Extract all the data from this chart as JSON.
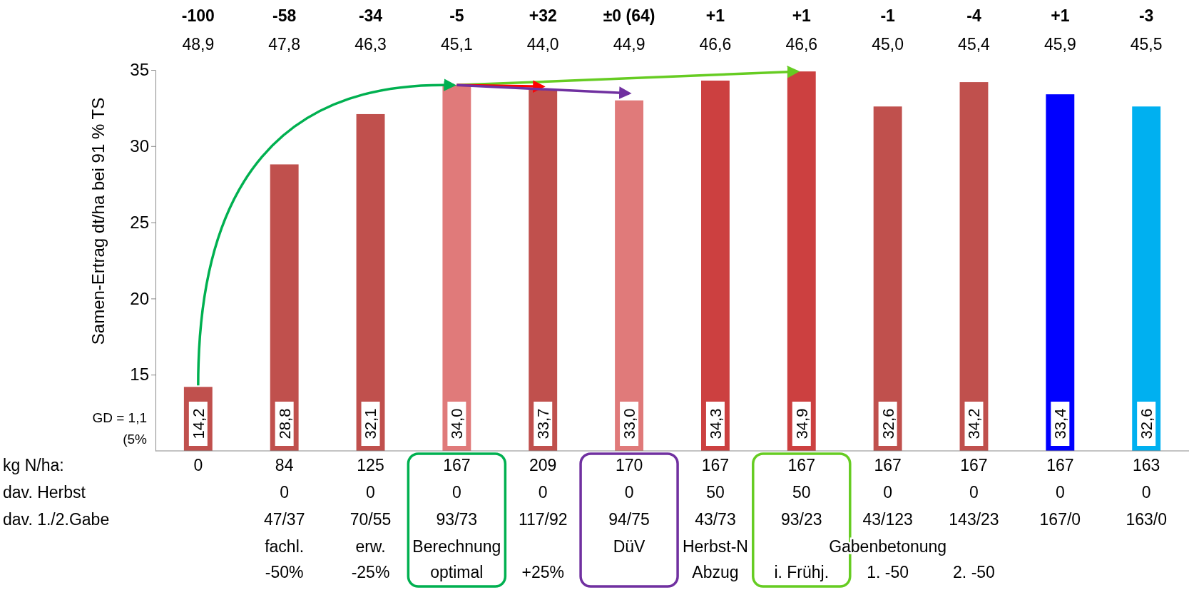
{
  "chart_data": {
    "type": "bar",
    "ylabel": "Samen-Ertrag dt/ha bei 91 % TS",
    "categories": [
      "0\n\n",
      "84\n0\n47/37\nfachl.\n-50%",
      "125\n0\n70/55\nerw.\n-25%",
      "167\n0\n93/73\nBerechnung\noptimal",
      "209\n0\n117/92\n\n+25%",
      "170\n0\n94/75\nDüV",
      "167\n50\n43/73\nHerbst-N\nAbzug",
      "167\n50\n93/23\n\ni. Frühj.",
      "167\n0\n43/123\nGabenbetonung\n1. -50",
      "167\n0\n143/23\n\n2. -50",
      "167\n0\n167/0",
      "163\n0\n163/0"
    ],
    "values": [
      14.2,
      28.8,
      32.1,
      34.0,
      33.7,
      33.0,
      34.3,
      34.9,
      32.6,
      34.2,
      33.4,
      32.6
    ],
    "colors": [
      "#c0504d",
      "#c0504d",
      "#c0504d",
      "#e07a7a",
      "#c0504d",
      "#e07a7a",
      "#cc4040",
      "#cc4040",
      "#c0504d",
      "#c0504d",
      "#0000ff",
      "#00b0f0"
    ],
    "ylim": [
      10,
      35
    ],
    "yticks": [
      15,
      20,
      25,
      30,
      35
    ],
    "grid": false,
    "value_labels": [
      "14,2",
      "28,8",
      "32,1",
      "34,0",
      "33,7",
      "33,0",
      "34,3",
      "34,9",
      "32,6",
      "34,2",
      "33,4",
      "32,6"
    ],
    "annotations": [
      "-100",
      "-58",
      "-34",
      "-5",
      "+32",
      "±0 (64)",
      "+1",
      "+1",
      "-1",
      "-4",
      "+1",
      "-3",
      "48,9",
      "47,8",
      "46,3",
      "45,1",
      "44,0",
      "44,9",
      "46,6",
      "46,6",
      "45,0",
      "45,4",
      "45,9",
      "45,5",
      "GD = 1,1\n(5%",
      "kg N/ha:",
      "dav. Herbst",
      "dav. 1./2.Gabe"
    ]
  }
}
